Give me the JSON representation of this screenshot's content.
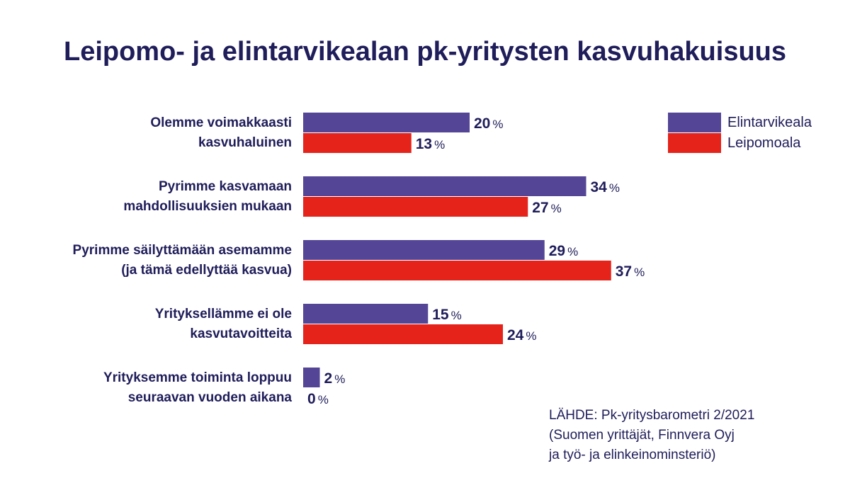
{
  "chart_data": {
    "type": "bar",
    "orientation": "horizontal",
    "title": "Leipomo- ja elintarvikealan pk-yritysten kasvuhakuisuus",
    "categories": [
      [
        "Olemme voimakkaasti",
        "kasvuhaluinen"
      ],
      [
        "Pyrimme kasvamaan",
        "mahdollisuuksien mukaan"
      ],
      [
        "Pyrimme säilyttämään asemamme",
        "(ja tämä edellyttää kasvua)"
      ],
      [
        "Yrityksellämme ei ole",
        "kasvutavoitteita"
      ],
      [
        "Yrityksemme toiminta loppuu",
        "seuraavan vuoden aikana"
      ]
    ],
    "series": [
      {
        "name": "Elintarvikeala",
        "color": "#554596",
        "values": [
          20,
          34,
          29,
          15,
          2
        ]
      },
      {
        "name": "Leipomoala",
        "color": "#e5231b",
        "values": [
          13,
          27,
          37,
          24,
          0
        ]
      }
    ],
    "unit": "%",
    "xlim": [
      0,
      40
    ],
    "grid": false,
    "legend_position": "top-right"
  },
  "source": [
    "LÄHDE: Pk-yritysbarometri 2/2021",
    "(Suomen yrittäjät, Finnvera Oyj",
    "ja työ- ja elinkeinominsteriö)"
  ]
}
